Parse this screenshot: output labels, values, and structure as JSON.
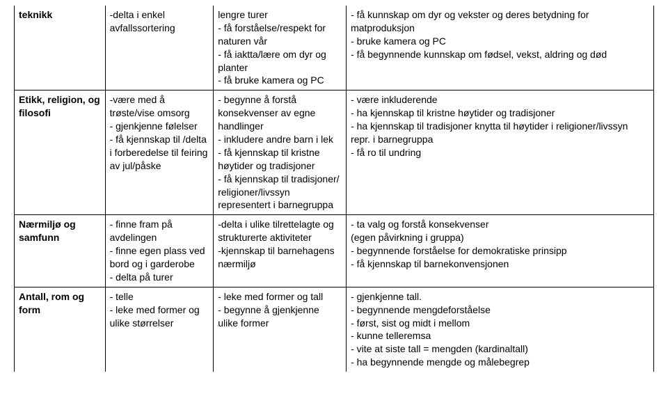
{
  "rows": [
    {
      "c0": "teknikk",
      "c1": "-delta i enkel avfallssortering",
      "c2": "lengre turer\n- få forståelse/respekt for naturen vår\n- få iaktta/lære om dyr og planter\n- få bruke kamera og PC",
      "c3": "- få kunnskap om dyr og vekster og deres betydning for matproduksjon\n- bruke kamera og PC\n- få begynnende kunnskap om fødsel, vekst, aldring og død"
    },
    {
      "c0": "Etikk, religion, og filosofi",
      "c1": "-være med å trøste/vise omsorg\n- gjenkjenne følelser\n- få kjennskap til /delta i forberedelse til feiring av jul/påske",
      "c2": "- begynne å forstå konsekvenser av egne handlinger\n- inkludere andre barn i lek\n- få kjennskap til kristne høytider og tradisjoner\n- få kjennskap til tradisjoner/ religioner/livssyn representert i barnegruppa",
      "c3": "- være inkluderende\n- ha kjennskap til kristne høytider og tradisjoner\n- ha kjennskap til tradisjoner knytta til høytider i religioner/livssyn repr. i barnegruppa\n- få ro til undring"
    },
    {
      "c0": "Nærmiljø og samfunn",
      "c1": "- finne fram på avdelingen\n- finne egen plass ved bord og i garderobe\n- delta på turer",
      "c2": "-delta i ulike tilrettelagte og strukturerte aktiviteter\n-kjennskap til barnehagens nærmiljø",
      "c3": "- ta valg og forstå konsekvenser\n(egen påvirkning i gruppa)\n- begynnende forståelse for demokratiske prinsipp\n- få kjennskap til barnekonvensjonen"
    },
    {
      "c0": "Antall, rom og form",
      "c1": "- telle\n- leke med former og ulike størrelser",
      "c2": "- leke med former og tall\n- begynne å gjenkjenne ulike former",
      "c3": "- gjenkjenne  tall.\n- begynnende mengdeforståelse\n- først, sist og midt i mellom\n- kunne telleremsa\n- vite at siste tall = mengden (kardinaltall)\n- ha begynnende mengde og målebegrep"
    }
  ]
}
